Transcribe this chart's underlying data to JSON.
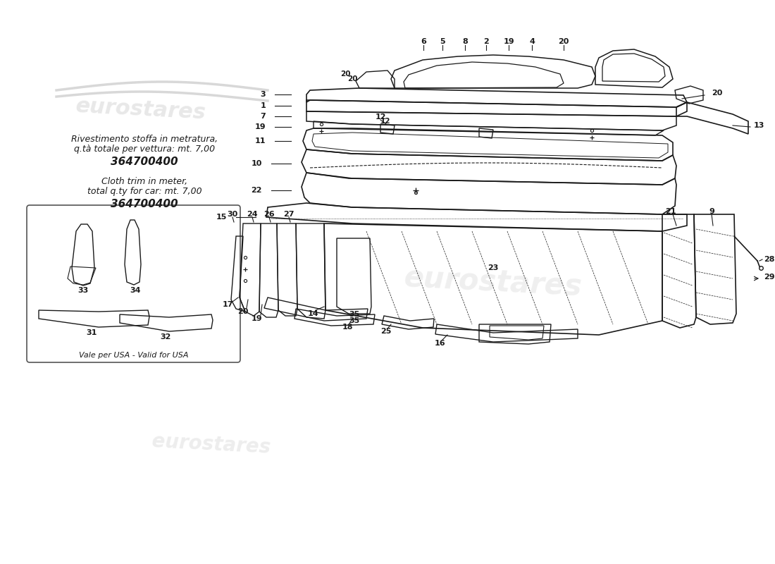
{
  "bg_color": "#ffffff",
  "italian_text_line1": "Rivestimento stoffa in metratura,",
  "italian_text_line2": "q.tà totale per vettura: mt. 7,00",
  "italian_part_num": "364700400",
  "english_text_line1": "Cloth trim in meter,",
  "english_text_line2": "total q.ty for car: mt. 7,00",
  "english_part_num": "364700400",
  "usa_note": "Vale per USA - Valid for USA",
  "line_color": "#1a1a1a",
  "text_color": "#1a1a1a",
  "watermark_text": "eurostares",
  "box_line_color": "#333333"
}
